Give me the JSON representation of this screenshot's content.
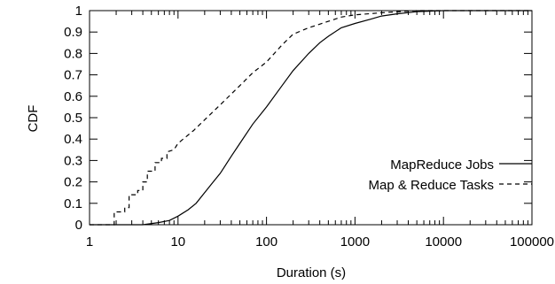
{
  "chart_data": {
    "type": "line",
    "xlabel": "Duration (s)",
    "ylabel": "CDF",
    "xscale": "log",
    "xlim": [
      1,
      100000
    ],
    "ylim": [
      0,
      1
    ],
    "xticks": [
      1,
      10,
      100,
      1000,
      10000,
      100000
    ],
    "xtick_labels": [
      "1",
      "10",
      "100",
      "1000",
      "10000",
      "100000"
    ],
    "yticks": [
      0,
      0.1,
      0.2,
      0.3,
      0.4,
      0.5,
      0.6,
      0.7,
      0.8,
      0.9,
      1
    ],
    "ytick_labels": [
      "0",
      "0.1",
      "0.2",
      "0.3",
      "0.4",
      "0.5",
      "0.6",
      "0.7",
      "0.8",
      "0.9",
      "1"
    ],
    "grid": false,
    "legend_position": "bottom-right",
    "series": [
      {
        "name": "MapReduce Jobs",
        "style": "solid",
        "points": [
          [
            1,
            0
          ],
          [
            4,
            0
          ],
          [
            6,
            0.01
          ],
          [
            8,
            0.02
          ],
          [
            10,
            0.04
          ],
          [
            13,
            0.07
          ],
          [
            16,
            0.1
          ],
          [
            20,
            0.15
          ],
          [
            25,
            0.2
          ],
          [
            30,
            0.24
          ],
          [
            40,
            0.32
          ],
          [
            50,
            0.38
          ],
          [
            70,
            0.47
          ],
          [
            100,
            0.55
          ],
          [
            150,
            0.65
          ],
          [
            200,
            0.72
          ],
          [
            300,
            0.8
          ],
          [
            400,
            0.85
          ],
          [
            500,
            0.88
          ],
          [
            700,
            0.92
          ],
          [
            1000,
            0.94
          ],
          [
            1500,
            0.96
          ],
          [
            2000,
            0.975
          ],
          [
            3000,
            0.985
          ],
          [
            5000,
            0.995
          ],
          [
            10000,
            1.0
          ],
          [
            100000,
            1.0
          ]
        ]
      },
      {
        "name": "Map & Reduce Tasks",
        "style": "dashed",
        "points": [
          [
            1,
            0
          ],
          [
            1.9,
            0
          ],
          [
            1.9,
            0.06
          ],
          [
            2.5,
            0.06
          ],
          [
            2.5,
            0.08
          ],
          [
            2.8,
            0.08
          ],
          [
            2.8,
            0.14
          ],
          [
            3.5,
            0.14
          ],
          [
            3.5,
            0.16
          ],
          [
            4.0,
            0.16
          ],
          [
            4.0,
            0.2
          ],
          [
            4.5,
            0.2
          ],
          [
            4.5,
            0.25
          ],
          [
            5.5,
            0.25
          ],
          [
            5.5,
            0.29
          ],
          [
            6.5,
            0.29
          ],
          [
            6.5,
            0.31
          ],
          [
            7.5,
            0.31
          ],
          [
            7.5,
            0.34
          ],
          [
            9,
            0.35
          ],
          [
            10,
            0.38
          ],
          [
            15,
            0.44
          ],
          [
            20,
            0.49
          ],
          [
            30,
            0.56
          ],
          [
            50,
            0.65
          ],
          [
            70,
            0.71
          ],
          [
            100,
            0.76
          ],
          [
            150,
            0.84
          ],
          [
            200,
            0.89
          ],
          [
            300,
            0.92
          ],
          [
            500,
            0.95
          ],
          [
            700,
            0.97
          ],
          [
            1000,
            0.98
          ],
          [
            2000,
            0.99
          ],
          [
            5000,
            1.0
          ],
          [
            100000,
            1.0
          ]
        ]
      }
    ]
  }
}
